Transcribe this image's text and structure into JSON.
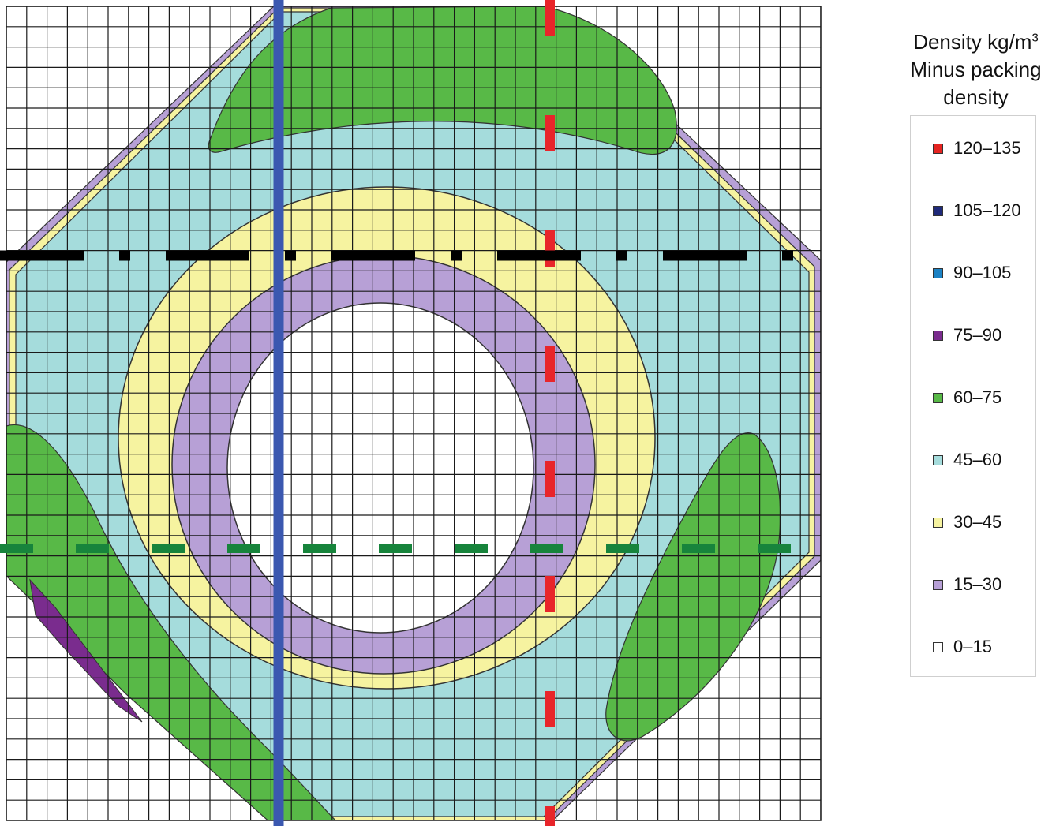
{
  "chart_data": {
    "type": "heatmap",
    "title": "",
    "legend": {
      "title_line1": "Density kg/m",
      "title_sup": "3",
      "title_line2": "Minus packing",
      "title_line3": "density",
      "placement": "right",
      "entries": [
        {
          "label": "120–135",
          "color": "#e52421"
        },
        {
          "label": "105–120",
          "color": "#1f2a7a"
        },
        {
          "label": "90–105",
          "color": "#1c82c4"
        },
        {
          "label": "75–90",
          "color": "#7a2c8e"
        },
        {
          "label": "60–75",
          "color": "#58b947"
        },
        {
          "label": "45–60",
          "color": "#a5dcdc"
        },
        {
          "label": "30–45",
          "color": "#f6f3a0"
        },
        {
          "label": "15–30",
          "color": "#b7a0d6"
        },
        {
          "label": "0–15",
          "color": "#ffffff"
        }
      ]
    },
    "grid": true,
    "grid_cells": 40,
    "reference_lines": [
      {
        "orientation": "vertical",
        "style": "solid",
        "color": "#3b58b0"
      },
      {
        "orientation": "vertical",
        "style": "dashed",
        "color": "#e8252a"
      },
      {
        "orientation": "horizontal",
        "style": "dash-dot",
        "color": "#000000"
      },
      {
        "orientation": "horizontal",
        "style": "dashed",
        "color": "#17843c"
      }
    ]
  }
}
